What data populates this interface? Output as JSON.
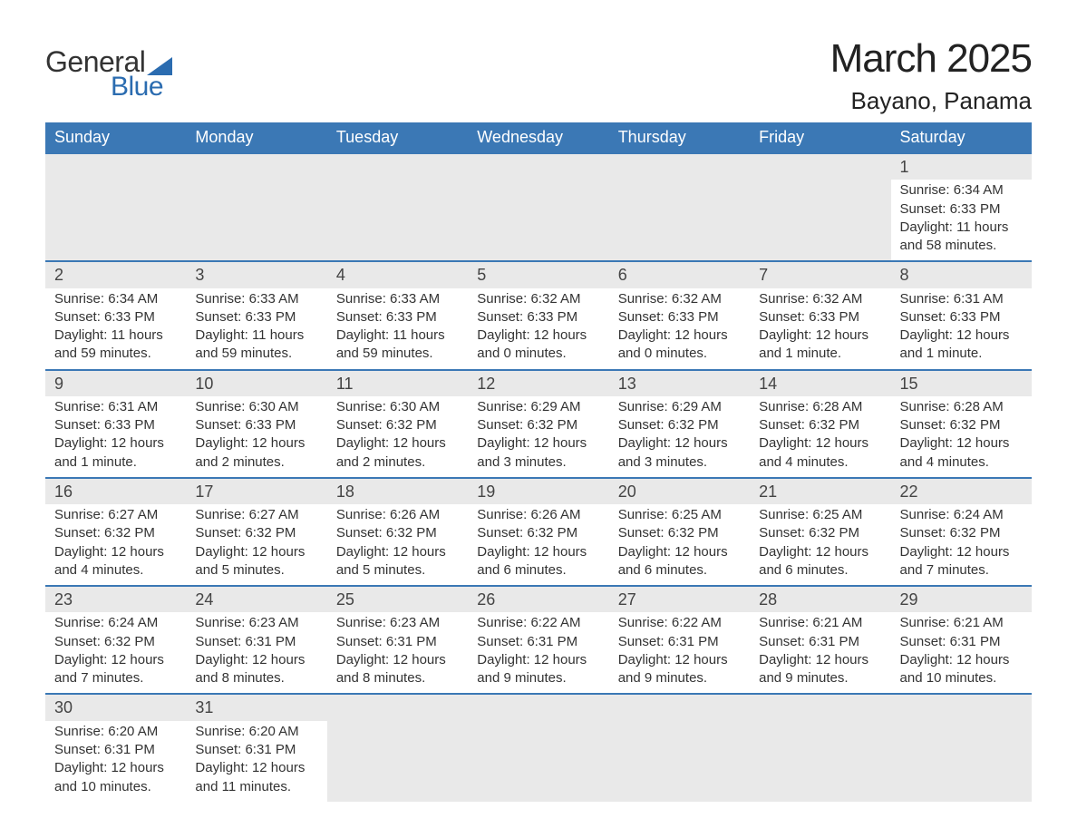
{
  "logo": {
    "line1": "General",
    "line2": "Blue"
  },
  "title": {
    "month": "March 2025",
    "location": "Bayano, Panama"
  },
  "colors": {
    "header_bg": "#3b78b5",
    "header_text": "#ffffff",
    "daynum_bg": "#e9e9e9",
    "border": "#3b78b5",
    "body_text": "#333333",
    "logo_blue": "#2b6cb0",
    "page_bg": "#ffffff"
  },
  "typography": {
    "title_fontsize": 44,
    "location_fontsize": 26,
    "header_fontsize": 18,
    "daynum_fontsize": 18,
    "cell_fontsize": 15
  },
  "day_headers": [
    "Sunday",
    "Monday",
    "Tuesday",
    "Wednesday",
    "Thursday",
    "Friday",
    "Saturday"
  ],
  "weeks": [
    [
      null,
      null,
      null,
      null,
      null,
      null,
      {
        "n": "1",
        "sunrise": "6:34 AM",
        "sunset": "6:33 PM",
        "daylight": "11 hours and 58 minutes."
      }
    ],
    [
      {
        "n": "2",
        "sunrise": "6:34 AM",
        "sunset": "6:33 PM",
        "daylight": "11 hours and 59 minutes."
      },
      {
        "n": "3",
        "sunrise": "6:33 AM",
        "sunset": "6:33 PM",
        "daylight": "11 hours and 59 minutes."
      },
      {
        "n": "4",
        "sunrise": "6:33 AM",
        "sunset": "6:33 PM",
        "daylight": "11 hours and 59 minutes."
      },
      {
        "n": "5",
        "sunrise": "6:32 AM",
        "sunset": "6:33 PM",
        "daylight": "12 hours and 0 minutes."
      },
      {
        "n": "6",
        "sunrise": "6:32 AM",
        "sunset": "6:33 PM",
        "daylight": "12 hours and 0 minutes."
      },
      {
        "n": "7",
        "sunrise": "6:32 AM",
        "sunset": "6:33 PM",
        "daylight": "12 hours and 1 minute."
      },
      {
        "n": "8",
        "sunrise": "6:31 AM",
        "sunset": "6:33 PM",
        "daylight": "12 hours and 1 minute."
      }
    ],
    [
      {
        "n": "9",
        "sunrise": "6:31 AM",
        "sunset": "6:33 PM",
        "daylight": "12 hours and 1 minute."
      },
      {
        "n": "10",
        "sunrise": "6:30 AM",
        "sunset": "6:33 PM",
        "daylight": "12 hours and 2 minutes."
      },
      {
        "n": "11",
        "sunrise": "6:30 AM",
        "sunset": "6:32 PM",
        "daylight": "12 hours and 2 minutes."
      },
      {
        "n": "12",
        "sunrise": "6:29 AM",
        "sunset": "6:32 PM",
        "daylight": "12 hours and 3 minutes."
      },
      {
        "n": "13",
        "sunrise": "6:29 AM",
        "sunset": "6:32 PM",
        "daylight": "12 hours and 3 minutes."
      },
      {
        "n": "14",
        "sunrise": "6:28 AM",
        "sunset": "6:32 PM",
        "daylight": "12 hours and 4 minutes."
      },
      {
        "n": "15",
        "sunrise": "6:28 AM",
        "sunset": "6:32 PM",
        "daylight": "12 hours and 4 minutes."
      }
    ],
    [
      {
        "n": "16",
        "sunrise": "6:27 AM",
        "sunset": "6:32 PM",
        "daylight": "12 hours and 4 minutes."
      },
      {
        "n": "17",
        "sunrise": "6:27 AM",
        "sunset": "6:32 PM",
        "daylight": "12 hours and 5 minutes."
      },
      {
        "n": "18",
        "sunrise": "6:26 AM",
        "sunset": "6:32 PM",
        "daylight": "12 hours and 5 minutes."
      },
      {
        "n": "19",
        "sunrise": "6:26 AM",
        "sunset": "6:32 PM",
        "daylight": "12 hours and 6 minutes."
      },
      {
        "n": "20",
        "sunrise": "6:25 AM",
        "sunset": "6:32 PM",
        "daylight": "12 hours and 6 minutes."
      },
      {
        "n": "21",
        "sunrise": "6:25 AM",
        "sunset": "6:32 PM",
        "daylight": "12 hours and 6 minutes."
      },
      {
        "n": "22",
        "sunrise": "6:24 AM",
        "sunset": "6:32 PM",
        "daylight": "12 hours and 7 minutes."
      }
    ],
    [
      {
        "n": "23",
        "sunrise": "6:24 AM",
        "sunset": "6:32 PM",
        "daylight": "12 hours and 7 minutes."
      },
      {
        "n": "24",
        "sunrise": "6:23 AM",
        "sunset": "6:31 PM",
        "daylight": "12 hours and 8 minutes."
      },
      {
        "n": "25",
        "sunrise": "6:23 AM",
        "sunset": "6:31 PM",
        "daylight": "12 hours and 8 minutes."
      },
      {
        "n": "26",
        "sunrise": "6:22 AM",
        "sunset": "6:31 PM",
        "daylight": "12 hours and 9 minutes."
      },
      {
        "n": "27",
        "sunrise": "6:22 AM",
        "sunset": "6:31 PM",
        "daylight": "12 hours and 9 minutes."
      },
      {
        "n": "28",
        "sunrise": "6:21 AM",
        "sunset": "6:31 PM",
        "daylight": "12 hours and 9 minutes."
      },
      {
        "n": "29",
        "sunrise": "6:21 AM",
        "sunset": "6:31 PM",
        "daylight": "12 hours and 10 minutes."
      }
    ],
    [
      {
        "n": "30",
        "sunrise": "6:20 AM",
        "sunset": "6:31 PM",
        "daylight": "12 hours and 10 minutes."
      },
      {
        "n": "31",
        "sunrise": "6:20 AM",
        "sunset": "6:31 PM",
        "daylight": "12 hours and 11 minutes."
      },
      null,
      null,
      null,
      null,
      null
    ]
  ],
  "labels": {
    "sunrise": "Sunrise: ",
    "sunset": "Sunset: ",
    "daylight": "Daylight: "
  }
}
